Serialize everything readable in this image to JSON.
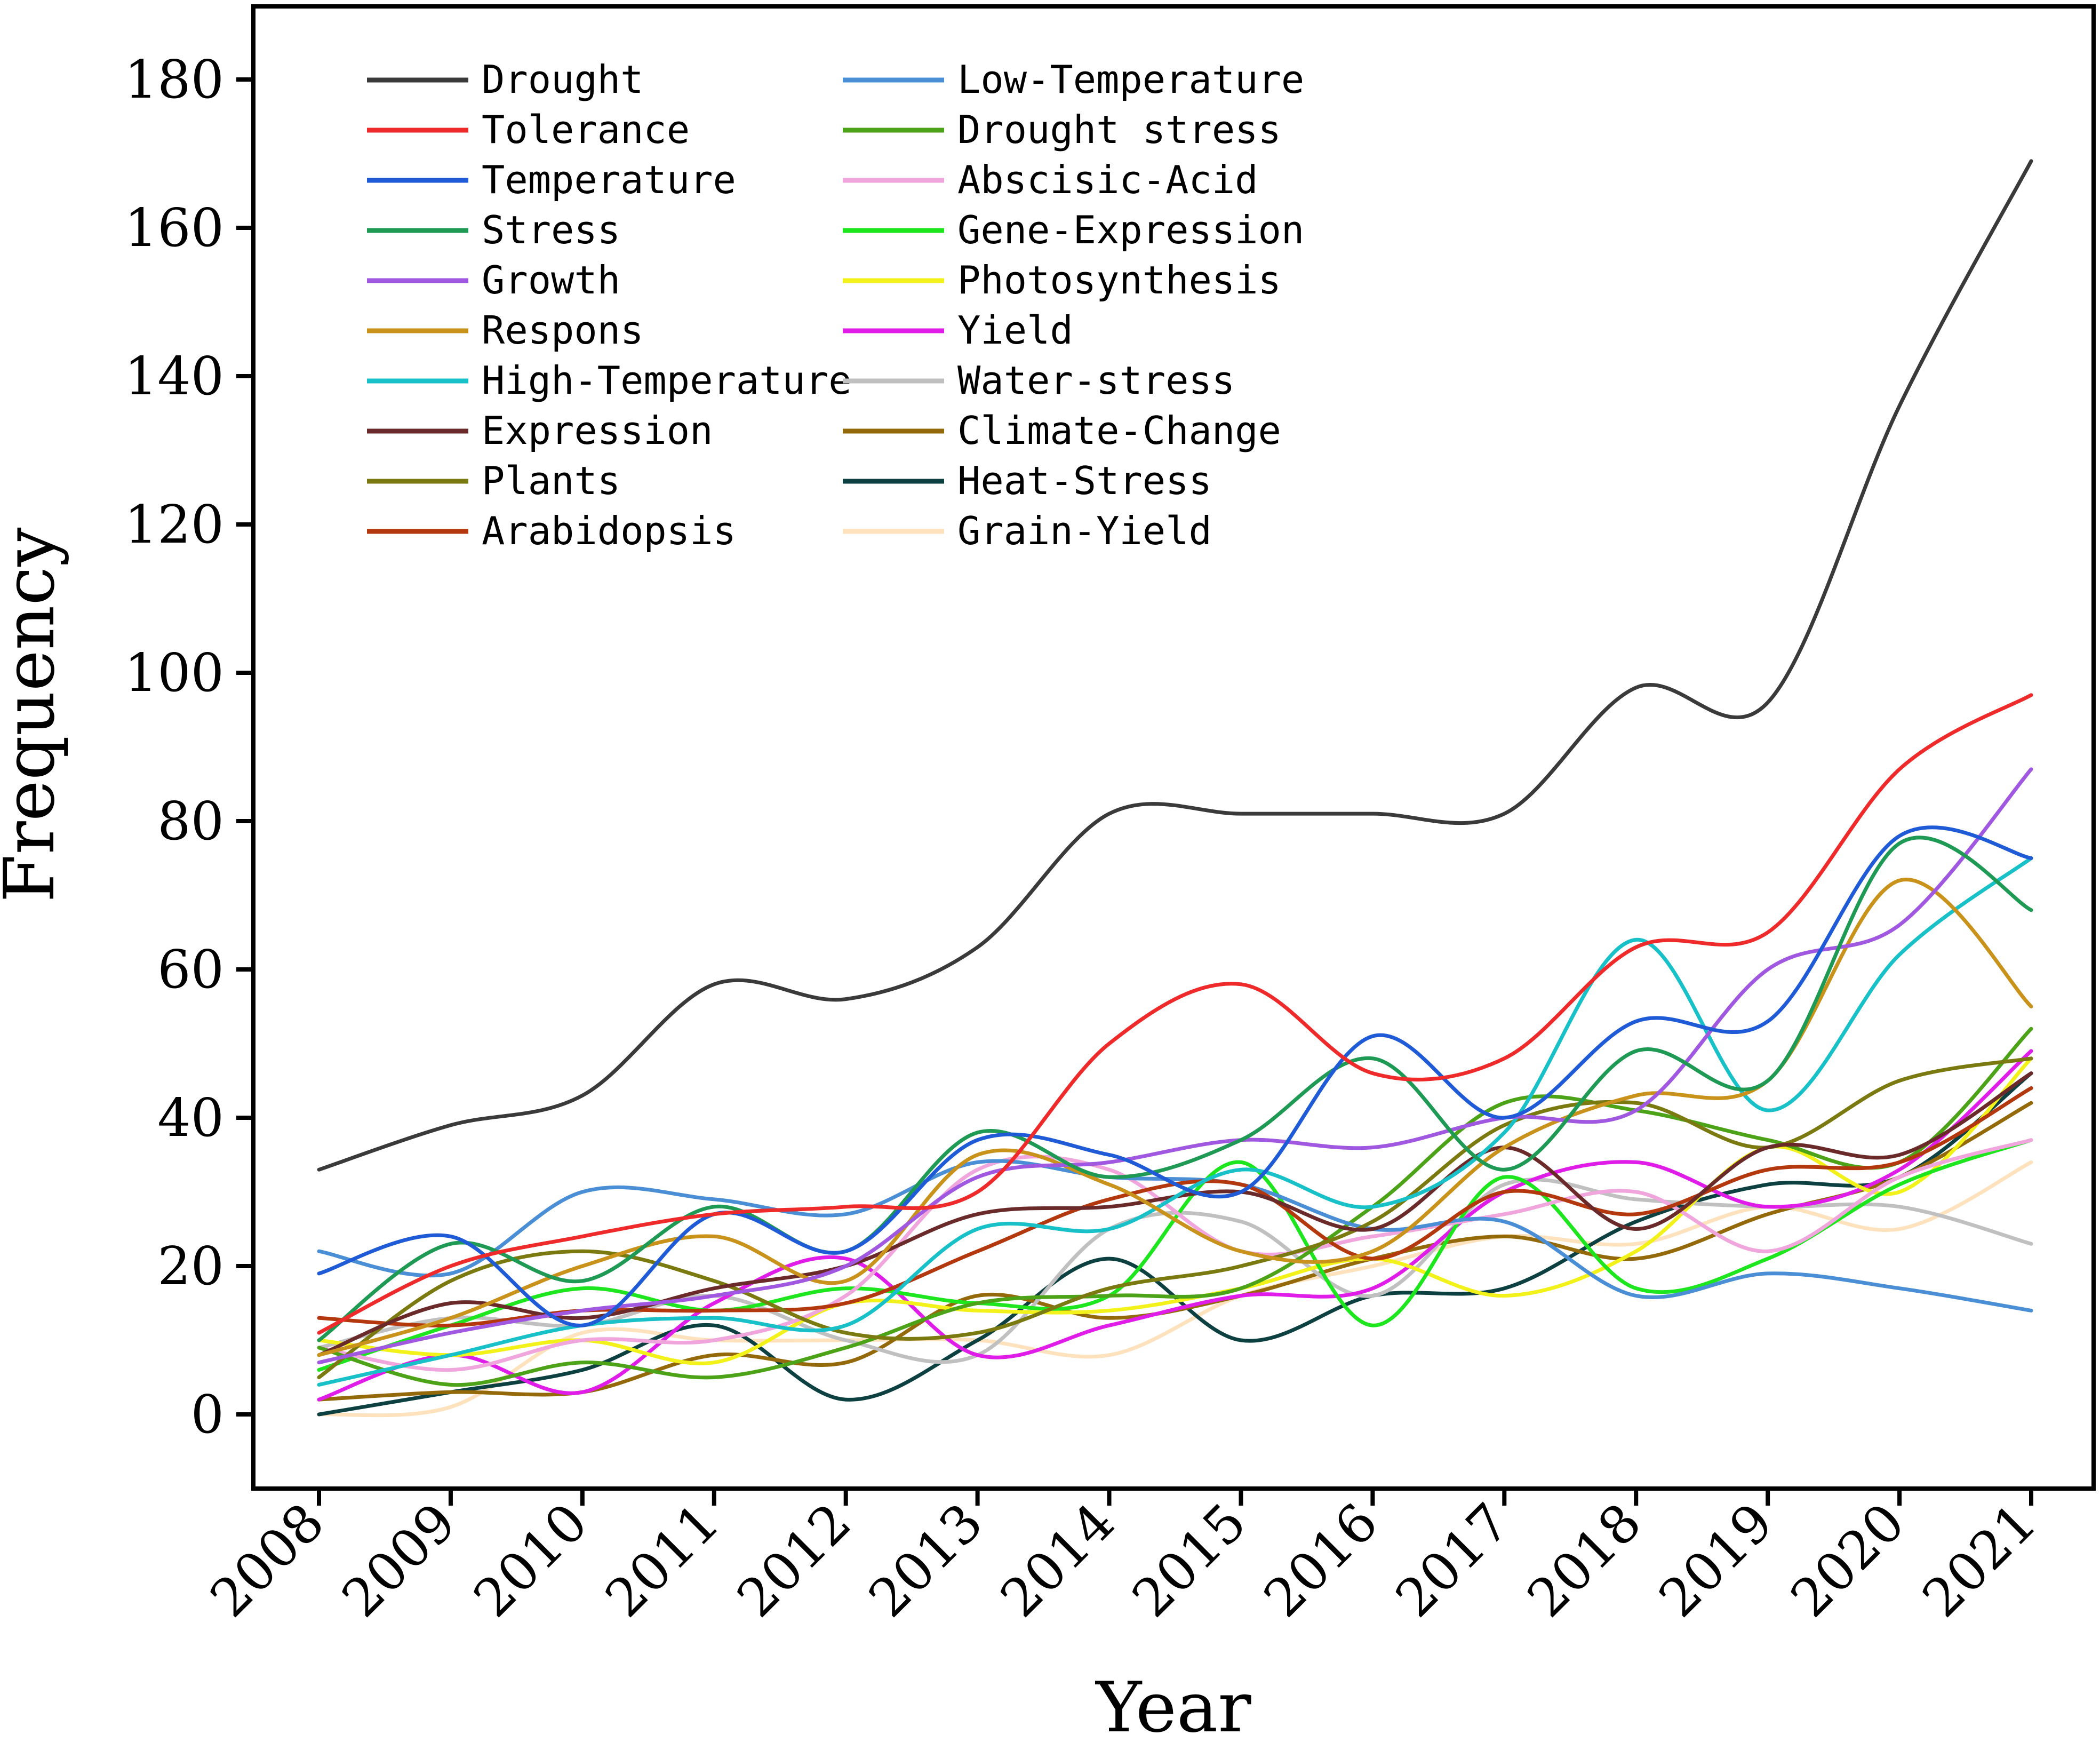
{
  "chart_data": {
    "type": "line",
    "title": "",
    "xlabel": "Year",
    "ylabel": "Frequency",
    "ylim": [
      -10,
      190
    ],
    "yticks": [
      0,
      20,
      40,
      60,
      80,
      100,
      120,
      140,
      160,
      180
    ],
    "ytick_labels": [
      "0",
      "20",
      "40",
      "60",
      "80",
      "100",
      "120",
      "140",
      "160",
      "180"
    ],
    "categories": [
      "2008",
      "2009",
      "2010",
      "2011",
      "2012",
      "2013",
      "2014",
      "2015",
      "2016",
      "2017",
      "2018",
      "2019",
      "2020",
      "2021"
    ],
    "legend_position": "top-left",
    "series": [
      {
        "name": "Drought",
        "color": "#3a3a3a",
        "values": [
          33,
          39,
          43,
          58,
          56,
          63,
          81,
          81,
          81,
          81,
          98,
          96,
          136,
          169
        ]
      },
      {
        "name": "Tolerance",
        "color": "#ee2a2a",
        "values": [
          11,
          20,
          24,
          27,
          28,
          30,
          50,
          58,
          46,
          48,
          63,
          65,
          87,
          97
        ]
      },
      {
        "name": "Temperature",
        "color": "#1f5bd6",
        "values": [
          19,
          24,
          12,
          27,
          22,
          37,
          35,
          30,
          51,
          40,
          53,
          53,
          78,
          75
        ]
      },
      {
        "name": "Stress",
        "color": "#1e9a55",
        "values": [
          10,
          23,
          18,
          28,
          22,
          38,
          32,
          37,
          48,
          33,
          49,
          45,
          77,
          68
        ]
      },
      {
        "name": "Growth",
        "color": "#a058e0",
        "values": [
          7,
          11,
          14,
          16,
          20,
          32,
          34,
          37,
          36,
          40,
          41,
          60,
          66,
          87
        ]
      },
      {
        "name": "Respons",
        "color": "#c9921a",
        "values": [
          8,
          13,
          20,
          24,
          18,
          35,
          31,
          22,
          22,
          36,
          43,
          45,
          72,
          55
        ]
      },
      {
        "name": "High-Temperature",
        "color": "#18c0c8",
        "values": [
          4,
          8,
          12,
          13,
          12,
          25,
          25,
          33,
          28,
          38,
          64,
          41,
          62,
          75
        ]
      },
      {
        "name": "Expression",
        "color": "#6b2a2a",
        "values": [
          8,
          15,
          13,
          17,
          20,
          27,
          28,
          30,
          25,
          36,
          25,
          36,
          35,
          46
        ]
      },
      {
        "name": "Plants",
        "color": "#7a7a10",
        "values": [
          5,
          18,
          22,
          18,
          11,
          11,
          17,
          20,
          26,
          39,
          42,
          36,
          45,
          48
        ]
      },
      {
        "name": "Arabidopsis",
        "color": "#b4380e",
        "values": [
          13,
          12,
          14,
          14,
          15,
          22,
          29,
          31,
          21,
          30,
          27,
          33,
          34,
          44
        ]
      },
      {
        "name": "Low-Temperature",
        "color": "#4a8fd6",
        "values": [
          22,
          19,
          30,
          29,
          27,
          34,
          32,
          31,
          25,
          26,
          16,
          19,
          17,
          14
        ]
      },
      {
        "name": "Drought stress",
        "color": "#4da318",
        "values": [
          9,
          4,
          7,
          5,
          9,
          15,
          16,
          17,
          28,
          42,
          41,
          37,
          34,
          52
        ]
      },
      {
        "name": "Abscisic-Acid",
        "color": "#f0a6dc",
        "values": [
          9,
          6,
          10,
          10,
          16,
          33,
          33,
          22,
          24,
          27,
          30,
          22,
          32,
          37
        ]
      },
      {
        "name": "Gene-Expression",
        "color": "#1ee61e",
        "values": [
          6,
          12,
          17,
          14,
          17,
          15,
          16,
          34,
          12,
          32,
          17,
          21,
          31,
          37
        ]
      },
      {
        "name": "Photosynthesis",
        "color": "#f2f21a",
        "values": [
          10,
          8,
          10,
          7,
          15,
          14,
          14,
          17,
          21,
          16,
          22,
          36,
          30,
          48
        ]
      },
      {
        "name": "Yield",
        "color": "#e01ce8",
        "values": [
          2,
          8,
          3,
          15,
          21,
          8,
          12,
          16,
          17,
          30,
          34,
          28,
          33,
          49
        ]
      },
      {
        "name": "Water-stress",
        "color": "#c0c0c0",
        "values": [
          9,
          13,
          12,
          16,
          10,
          8,
          25,
          26,
          16,
          31,
          29,
          28,
          28,
          23
        ]
      },
      {
        "name": "Climate-Change",
        "color": "#94690a",
        "values": [
          2,
          3,
          3,
          8,
          7,
          16,
          13,
          16,
          21,
          24,
          21,
          27,
          32,
          42
        ]
      },
      {
        "name": "Heat-Stress",
        "color": "#0d4040",
        "values": [
          0,
          3,
          6,
          12,
          2,
          10,
          21,
          10,
          16,
          17,
          26,
          31,
          32,
          46
        ]
      },
      {
        "name": "Grain-Yield",
        "color": "#fde2bd",
        "values": [
          0,
          1,
          11,
          10,
          10,
          10,
          8,
          16,
          20,
          24,
          23,
          28,
          25,
          34
        ]
      }
    ]
  }
}
